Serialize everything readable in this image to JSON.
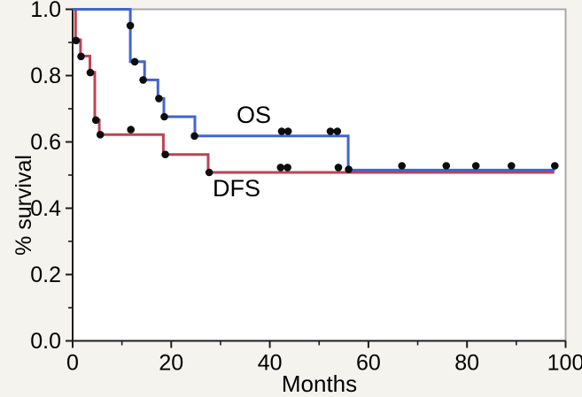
{
  "chart_data": {
    "type": "line",
    "subtype": "kaplan-meier-step",
    "title": "",
    "xlabel": "Months",
    "ylabel": "% survival",
    "xlim": [
      0,
      100
    ],
    "ylim": [
      0.0,
      1.0
    ],
    "grid": false,
    "frame": {
      "top_right_border_color": "#a8a8a8",
      "axis_color": "#1c1c1c",
      "plot_bg": "#ffffff",
      "page_bg": "#f4f3ee"
    },
    "xticks": {
      "values": [
        0,
        20,
        40,
        60,
        80,
        100
      ],
      "labels": [
        "0",
        "20",
        "40",
        "60",
        "80",
        "100"
      ],
      "minor": [
        10,
        30,
        50,
        70,
        90
      ]
    },
    "yticks": {
      "values": [
        1.0,
        0.8,
        0.6,
        0.4,
        0.2,
        0.0
      ],
      "labels": [
        "1.0",
        "0.8",
        "0.6",
        "0.4",
        "0.2",
        "0.0"
      ],
      "minor": [
        0.9,
        0.7,
        0.5,
        0.3,
        0.1
      ]
    },
    "marker_color": "#0d0d0d",
    "series": [
      {
        "name": "OS",
        "color": "#4164d2",
        "steps": [
          [
            0,
            1.0
          ],
          [
            11.7,
            1.0
          ],
          [
            11.7,
            0.842
          ],
          [
            14.6,
            0.842
          ],
          [
            14.6,
            0.787
          ],
          [
            17.3,
            0.787
          ],
          [
            17.3,
            0.731
          ],
          [
            18.5,
            0.731
          ],
          [
            18.5,
            0.676
          ],
          [
            24.8,
            0.676
          ],
          [
            24.8,
            0.618
          ],
          [
            55.9,
            0.618
          ],
          [
            55.9,
            0.515
          ],
          [
            97.8,
            0.515
          ]
        ],
        "markers": [
          [
            11.7,
            0.951
          ],
          [
            12.6,
            0.842
          ],
          [
            14.3,
            0.787
          ],
          [
            17.5,
            0.731
          ],
          [
            18.6,
            0.676
          ],
          [
            24.7,
            0.618
          ],
          [
            42.4,
            0.632
          ],
          [
            43.7,
            0.632
          ],
          [
            52.3,
            0.632
          ],
          [
            53.7,
            0.632
          ],
          [
            56.0,
            0.517
          ],
          [
            66.8,
            0.528
          ],
          [
            75.8,
            0.528
          ],
          [
            81.8,
            0.528
          ],
          [
            89.0,
            0.528
          ],
          [
            97.8,
            0.528
          ]
        ]
      },
      {
        "name": "DFS",
        "color": "#bf4252",
        "steps": [
          [
            0,
            1.0
          ],
          [
            0.6,
            1.0
          ],
          [
            0.6,
            0.908
          ],
          [
            1.6,
            0.908
          ],
          [
            1.6,
            0.859
          ],
          [
            3.5,
            0.859
          ],
          [
            3.5,
            0.81
          ],
          [
            4.5,
            0.81
          ],
          [
            4.5,
            0.666
          ],
          [
            5.4,
            0.666
          ],
          [
            5.4,
            0.622
          ],
          [
            18.4,
            0.622
          ],
          [
            18.4,
            0.562
          ],
          [
            27.5,
            0.562
          ],
          [
            27.5,
            0.508
          ],
          [
            97.7,
            0.508
          ]
        ],
        "markers": [
          [
            0.7,
            0.906
          ],
          [
            1.7,
            0.858
          ],
          [
            3.6,
            0.809
          ],
          [
            4.7,
            0.666
          ],
          [
            5.6,
            0.622
          ],
          [
            11.8,
            0.637
          ],
          [
            18.8,
            0.562
          ],
          [
            27.7,
            0.508
          ],
          [
            42.2,
            0.523
          ],
          [
            43.6,
            0.523
          ],
          [
            53.9,
            0.523
          ]
        ]
      }
    ]
  }
}
